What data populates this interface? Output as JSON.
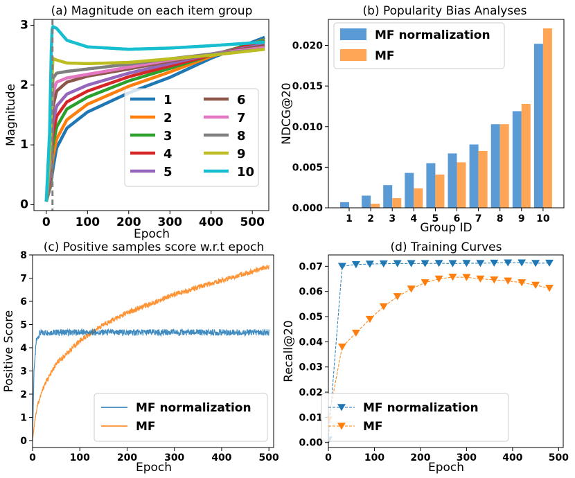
{
  "chart_data": [
    {
      "id": "a",
      "type": "line",
      "title": "(a) Magnitude on each item group",
      "xlabel": "Epoch",
      "ylabel": "Magnitude",
      "xlim": [
        -30,
        540
      ],
      "ylim": [
        -0.1,
        3.1
      ],
      "xticks": [
        0,
        100,
        200,
        300,
        400,
        500
      ],
      "yticks": [
        0,
        1,
        2,
        3
      ],
      "vline": {
        "x": 15,
        "style": "dashed",
        "color": "#808080"
      },
      "legend": "lower-right",
      "series": [
        {
          "name": "1",
          "color": "#1f77b4",
          "keypoints": [
            [
              0,
              0.05
            ],
            [
              10,
              0.3
            ],
            [
              15,
              0.55
            ],
            [
              25,
              0.95
            ],
            [
              50,
              1.28
            ],
            [
              100,
              1.55
            ],
            [
              200,
              1.87
            ],
            [
              300,
              2.13
            ],
            [
              400,
              2.45
            ],
            [
              530,
              2.8
            ]
          ]
        },
        {
          "name": "2",
          "color": "#ff7f0e",
          "keypoints": [
            [
              0,
              0.05
            ],
            [
              10,
              0.35
            ],
            [
              15,
              0.75
            ],
            [
              25,
              1.1
            ],
            [
              50,
              1.42
            ],
            [
              100,
              1.68
            ],
            [
              200,
              1.98
            ],
            [
              300,
              2.22
            ],
            [
              400,
              2.48
            ],
            [
              530,
              2.76
            ]
          ]
        },
        {
          "name": "3",
          "color": "#2ca02c",
          "keypoints": [
            [
              0,
              0.05
            ],
            [
              10,
              0.4
            ],
            [
              15,
              0.95
            ],
            [
              25,
              1.3
            ],
            [
              50,
              1.6
            ],
            [
              100,
              1.8
            ],
            [
              200,
              2.07
            ],
            [
              300,
              2.28
            ],
            [
              400,
              2.5
            ],
            [
              530,
              2.75
            ]
          ]
        },
        {
          "name": "4",
          "color": "#d62728",
          "keypoints": [
            [
              0,
              0.05
            ],
            [
              10,
              0.45
            ],
            [
              15,
              1.15
            ],
            [
              25,
              1.48
            ],
            [
              50,
              1.72
            ],
            [
              100,
              1.9
            ],
            [
              200,
              2.14
            ],
            [
              300,
              2.32
            ],
            [
              400,
              2.5
            ],
            [
              530,
              2.73
            ]
          ]
        },
        {
          "name": "5",
          "color": "#9467bd",
          "keypoints": [
            [
              0,
              0.05
            ],
            [
              10,
              0.5
            ],
            [
              15,
              1.35
            ],
            [
              25,
              1.65
            ],
            [
              50,
              1.85
            ],
            [
              100,
              2.0
            ],
            [
              200,
              2.2
            ],
            [
              300,
              2.36
            ],
            [
              400,
              2.52
            ],
            [
              530,
              2.68
            ]
          ]
        },
        {
          "name": "6",
          "color": "#8c564b",
          "keypoints": [
            [
              0,
              0.05
            ],
            [
              10,
              0.6
            ],
            [
              15,
              1.6
            ],
            [
              25,
              1.9
            ],
            [
              50,
              2.05
            ],
            [
              100,
              2.15
            ],
            [
              200,
              2.27
            ],
            [
              300,
              2.4
            ],
            [
              400,
              2.52
            ],
            [
              530,
              2.66
            ]
          ]
        },
        {
          "name": "7",
          "color": "#e377c2",
          "keypoints": [
            [
              0,
              0.05
            ],
            [
              10,
              0.7
            ],
            [
              15,
              1.85
            ],
            [
              25,
              2.05
            ],
            [
              50,
              2.12
            ],
            [
              100,
              2.18
            ],
            [
              200,
              2.3
            ],
            [
              300,
              2.42
            ],
            [
              400,
              2.52
            ],
            [
              530,
              2.63
            ]
          ]
        },
        {
          "name": "8",
          "color": "#7f7f7f",
          "keypoints": [
            [
              0,
              0.05
            ],
            [
              10,
              0.8
            ],
            [
              15,
              2.1
            ],
            [
              25,
              2.2
            ],
            [
              50,
              2.23
            ],
            [
              100,
              2.27
            ],
            [
              200,
              2.35
            ],
            [
              300,
              2.44
            ],
            [
              400,
              2.52
            ],
            [
              530,
              2.6
            ]
          ]
        },
        {
          "name": "9",
          "color": "#bcbd22",
          "keypoints": [
            [
              0,
              0.05
            ],
            [
              10,
              1.0
            ],
            [
              15,
              2.45
            ],
            [
              25,
              2.42
            ],
            [
              50,
              2.37
            ],
            [
              100,
              2.36
            ],
            [
              200,
              2.38
            ],
            [
              300,
              2.44
            ],
            [
              400,
              2.5
            ],
            [
              530,
              2.6
            ]
          ]
        },
        {
          "name": "10",
          "color": "#17becf",
          "keypoints": [
            [
              0,
              0.05
            ],
            [
              8,
              1.2
            ],
            [
              13,
              2.9
            ],
            [
              16,
              2.98
            ],
            [
              25,
              2.95
            ],
            [
              50,
              2.75
            ],
            [
              100,
              2.64
            ],
            [
              200,
              2.6
            ],
            [
              300,
              2.62
            ],
            [
              400,
              2.66
            ],
            [
              530,
              2.72
            ]
          ]
        }
      ]
    },
    {
      "id": "b",
      "type": "bar",
      "title": "(b) Popularity Bias Analyses",
      "xlabel": "Group ID",
      "ylabel": "NDCG@20",
      "categories": [
        "1",
        "2",
        "3",
        "4",
        "5",
        "6",
        "7",
        "8",
        "9",
        "10"
      ],
      "ylim": [
        0,
        0.0232
      ],
      "yticks": [
        "0.000",
        "0.005",
        "0.010",
        "0.015",
        "0.020"
      ],
      "legend": "top-left",
      "series": [
        {
          "name": "MF normalization",
          "color": "#5b9bd5",
          "values": [
            0.0007,
            0.0015,
            0.0028,
            0.0043,
            0.0055,
            0.0067,
            0.0078,
            0.0103,
            0.0119,
            0.0202
          ]
        },
        {
          "name": "MF",
          "color": "#ffa656",
          "values": [
            5e-05,
            0.0005,
            0.0012,
            0.0024,
            0.0041,
            0.0056,
            0.007,
            0.0103,
            0.0128,
            0.0221
          ]
        }
      ]
    },
    {
      "id": "c",
      "type": "line",
      "title": "(c) Positive samples score w.r.t epoch",
      "xlabel": "Epoch",
      "ylabel": "Positive Score",
      "xlim": [
        0,
        510
      ],
      "ylim": [
        -0.3,
        8.0
      ],
      "xticks": [
        0,
        100,
        200,
        300,
        400,
        500
      ],
      "yticks": [
        0,
        1,
        2,
        3,
        4,
        5,
        6,
        7,
        8
      ],
      "legend": "lower-right",
      "series": [
        {
          "name": "MF normalization",
          "color": "#1f77b4",
          "keypoints": [
            [
              0,
              0
            ],
            [
              3,
              3.0
            ],
            [
              8,
              4.3
            ],
            [
              15,
              4.62
            ],
            [
              30,
              4.66
            ],
            [
              100,
              4.66
            ],
            [
              300,
              4.66
            ],
            [
              500,
              4.66
            ]
          ]
        },
        {
          "name": "MF",
          "color": "#ff7f0e",
          "keypoints": [
            [
              0,
              0
            ],
            [
              5,
              0.9
            ],
            [
              10,
              1.5
            ],
            [
              25,
              2.4
            ],
            [
              50,
              3.3
            ],
            [
              100,
              4.3
            ],
            [
              150,
              5.0
            ],
            [
              200,
              5.5
            ],
            [
              300,
              6.3
            ],
            [
              400,
              6.9
            ],
            [
              500,
              7.5
            ]
          ]
        }
      ]
    },
    {
      "id": "d",
      "type": "line",
      "title": "(d) Training Curves",
      "xlabel": "Epoch",
      "ylabel": "Recall@20",
      "xlim": [
        0,
        510
      ],
      "ylim": [
        -0.002,
        0.0745
      ],
      "xticks": [
        0,
        100,
        200,
        300,
        400,
        500
      ],
      "yticks": [
        "0.00",
        "0.01",
        "0.02",
        "0.03",
        "0.04",
        "0.05",
        "0.06",
        "0.07"
      ],
      "legend": "lower-right",
      "series": [
        {
          "name": "MF normalization",
          "color": "#1f77b4",
          "marker": "triangle-down",
          "x": [
            0,
            30,
            60,
            90,
            120,
            150,
            180,
            210,
            240,
            270,
            300,
            330,
            360,
            390,
            420,
            450,
            480
          ],
          "values": [
            0.001,
            0.07,
            0.0707,
            0.0709,
            0.071,
            0.0711,
            0.0711,
            0.0711,
            0.0712,
            0.0711,
            0.0712,
            0.0712,
            0.0713,
            0.0714,
            0.0714,
            0.0712,
            0.0713
          ]
        },
        {
          "name": "MF",
          "color": "#ff7f0e",
          "marker": "triangle-down",
          "x": [
            0,
            30,
            60,
            90,
            120,
            150,
            180,
            210,
            240,
            270,
            300,
            330,
            360,
            390,
            420,
            450,
            480
          ],
          "values": [
            0.009,
            0.038,
            0.0435,
            0.049,
            0.054,
            0.058,
            0.061,
            0.0635,
            0.065,
            0.0657,
            0.0656,
            0.065,
            0.0646,
            0.0642,
            0.0635,
            0.0625,
            0.0613
          ]
        }
      ]
    }
  ]
}
